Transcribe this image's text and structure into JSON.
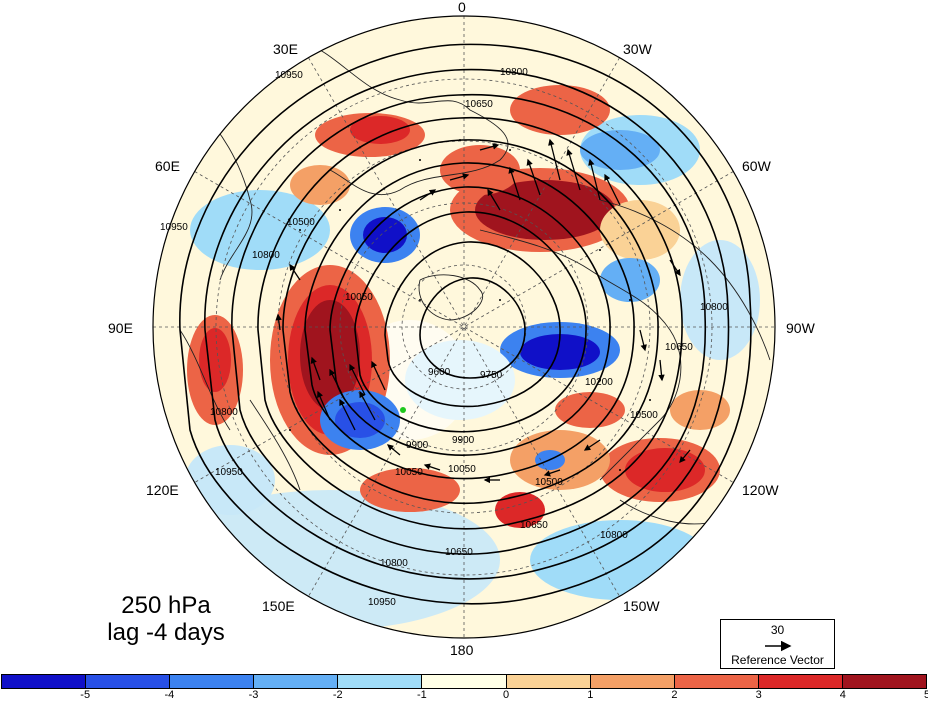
{
  "figure": {
    "level_label": "250 hPa",
    "lag_label": "lag -4 days"
  },
  "longitude_labels": [
    "0",
    "30W",
    "60W",
    "90W",
    "120W",
    "150W",
    "180",
    "150E",
    "120E",
    "90E",
    "60E",
    "30E"
  ],
  "contour_labels": [
    "10950",
    "10800",
    "10650",
    "10500",
    "10350",
    "10200",
    "10050",
    "9900",
    "9750",
    "9600"
  ],
  "reference_vector": {
    "magnitude": "30",
    "label": "Reference Vector"
  },
  "colorbar": {
    "tick_labels": [
      "-5",
      "-4",
      "-3",
      "-2",
      "-1",
      "0",
      "1",
      "2",
      "3",
      "4",
      "5"
    ],
    "colors": [
      "#1010c8",
      "#2850e6",
      "#3c82f0",
      "#64aff5",
      "#a0dcf8",
      "#ffffe6",
      "#fad296",
      "#f4a066",
      "#ec6446",
      "#dc2828",
      "#a0141e"
    ]
  },
  "colors": {
    "ocean_light": "#d8f0fa",
    "anomaly_positive_strong": "#a0141e",
    "anomaly_negative_strong": "#1010c8"
  }
}
